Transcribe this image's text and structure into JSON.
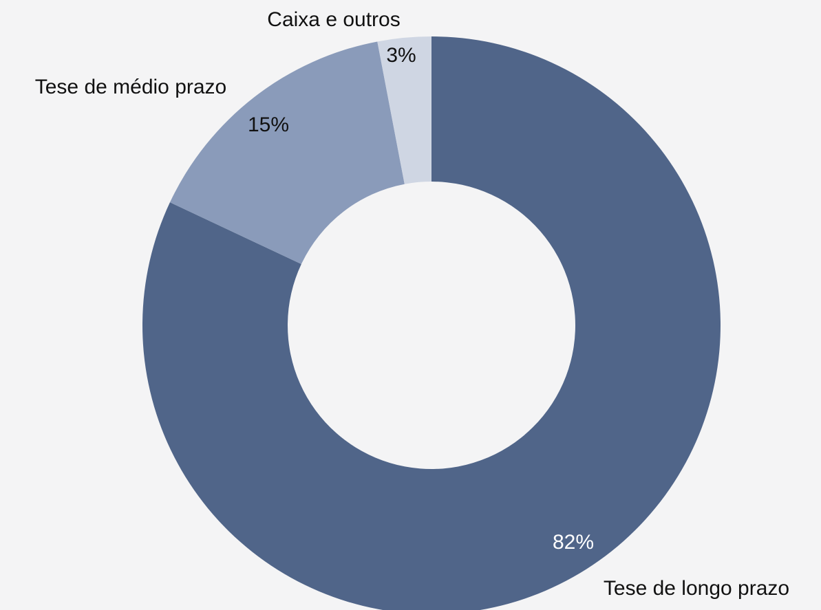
{
  "chart_data": {
    "type": "pie",
    "donut": true,
    "categories": [
      "Tese de longo prazo",
      "Tese de médio prazo",
      "Caixa e outros"
    ],
    "values": [
      82,
      15,
      3
    ],
    "value_labels": [
      "82%",
      "15%",
      "3%"
    ],
    "colors": [
      "#506589",
      "#8a9bba",
      "#cfd6e3"
    ]
  }
}
